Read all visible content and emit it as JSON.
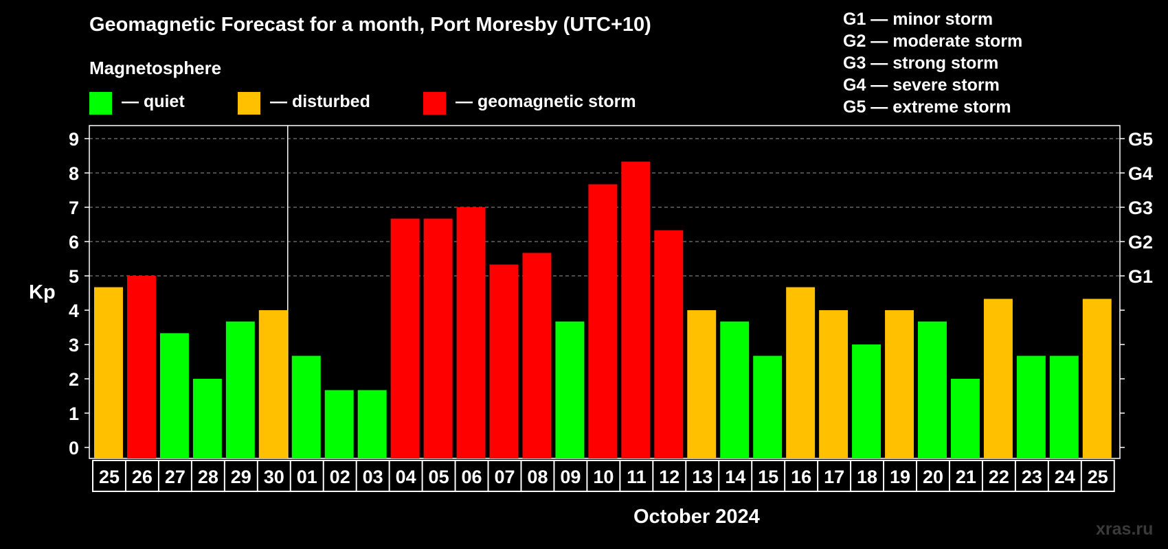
{
  "title": "Geomagnetic Forecast for a month, Port Moresby (UTC+10)",
  "legend": {
    "title": "Magnetosphere",
    "items": [
      {
        "key": "quiet",
        "label": "— quiet",
        "color": "#00ff00"
      },
      {
        "key": "disturbed",
        "label": "— disturbed",
        "color": "#ffc000"
      },
      {
        "key": "storm",
        "label": "— geomagnetic storm",
        "color": "#ff0000"
      }
    ]
  },
  "g_scale": [
    "G1 — minor storm",
    "G2 — moderate storm",
    "G3 — strong storm",
    "G4 — severe storm",
    "G5 — extreme storm"
  ],
  "watermark": "xras.ru",
  "chart_data": {
    "type": "bar",
    "title": "Geomagnetic Forecast for a month, Port Moresby (UTC+10)",
    "xlabel": "October 2024",
    "ylabel": "Kp",
    "ylim": [
      0,
      9
    ],
    "yticks": [
      0,
      1,
      2,
      3,
      4,
      5,
      6,
      7,
      8,
      9
    ],
    "right_axis": [
      {
        "kp": 5,
        "label": "G1"
      },
      {
        "kp": 6,
        "label": "G2"
      },
      {
        "kp": 7,
        "label": "G3"
      },
      {
        "kp": 8,
        "label": "G4"
      },
      {
        "kp": 9,
        "label": "G5"
      }
    ],
    "grid": "horizontal dashed from Kp 5 to 9",
    "month_divider_after": "30",
    "categories": [
      "25",
      "26",
      "27",
      "28",
      "29",
      "30",
      "01",
      "02",
      "03",
      "04",
      "05",
      "06",
      "07",
      "08",
      "09",
      "10",
      "11",
      "12",
      "13",
      "14",
      "15",
      "16",
      "17",
      "18",
      "19",
      "20",
      "21",
      "22",
      "23",
      "24",
      "25"
    ],
    "values": [
      4.67,
      5.0,
      3.33,
      2.0,
      3.67,
      4.0,
      2.67,
      1.67,
      1.67,
      6.67,
      6.67,
      7.0,
      5.33,
      5.67,
      3.67,
      7.67,
      8.33,
      6.33,
      4.0,
      3.67,
      2.67,
      4.67,
      4.0,
      3.0,
      4.0,
      3.67,
      2.0,
      4.33,
      2.67,
      2.67,
      4.33
    ],
    "levels": [
      "disturbed",
      "storm",
      "quiet",
      "quiet",
      "quiet",
      "disturbed",
      "quiet",
      "quiet",
      "quiet",
      "storm",
      "storm",
      "storm",
      "storm",
      "storm",
      "quiet",
      "storm",
      "storm",
      "storm",
      "disturbed",
      "quiet",
      "quiet",
      "disturbed",
      "disturbed",
      "quiet",
      "disturbed",
      "quiet",
      "quiet",
      "disturbed",
      "quiet",
      "quiet",
      "disturbed"
    ]
  }
}
